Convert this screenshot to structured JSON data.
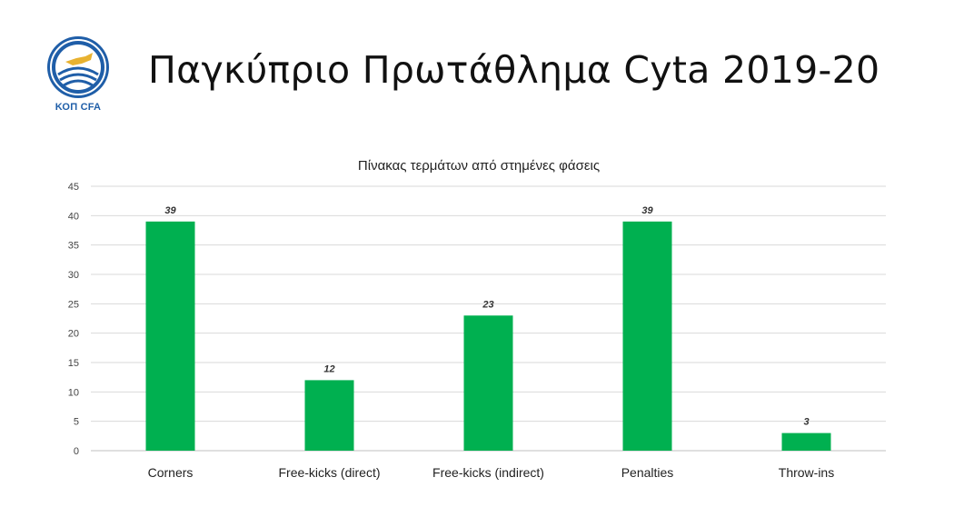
{
  "header": {
    "title": "Παγκύπριο Πρωτάθλημα Cyta 2019-20",
    "logo_text": "ΚΟΠ CFA"
  },
  "colors": {
    "bar": "#00B050",
    "logo_blue": "#1f5ea8"
  },
  "chart_data": {
    "type": "bar",
    "title": "Πίνακας τερμάτων από στημένες φάσεις",
    "categories": [
      "Corners",
      "Free-kicks (direct)",
      "Free-kicks (indirect)",
      "Penalties",
      "Throw-ins"
    ],
    "values": [
      39,
      12,
      23,
      39,
      3
    ],
    "ylim": [
      0,
      45
    ],
    "yticks": [
      0,
      5,
      10,
      15,
      20,
      25,
      30,
      35,
      40,
      45
    ],
    "grid": true,
    "legend": "none",
    "data_labels": true,
    "xlabel": "",
    "ylabel": ""
  }
}
